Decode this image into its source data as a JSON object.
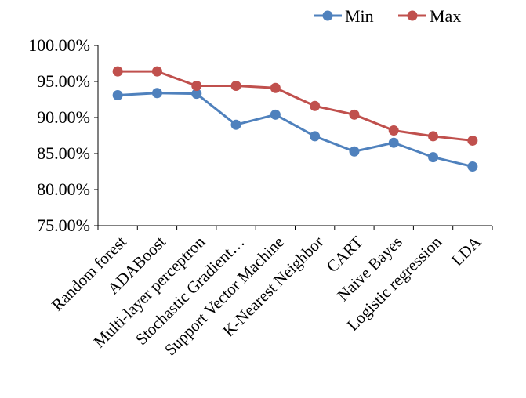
{
  "chart_data": {
    "type": "line",
    "categories": [
      "Random forest",
      "ADABoost",
      "Multi-layer perceptron",
      "Stochastic Gradient…",
      "Support Vector Machine",
      "K-Nearest Neighbor",
      "CART",
      "Naive Bayes",
      "Logistic regression",
      "LDA"
    ],
    "series": [
      {
        "name": "Min",
        "color": "#4f81bd",
        "values": [
          93.1,
          93.4,
          93.3,
          89.0,
          90.4,
          87.4,
          85.3,
          86.5,
          84.5,
          83.2
        ]
      },
      {
        "name": "Max",
        "color": "#c0504d",
        "values": [
          96.4,
          96.4,
          94.4,
          94.4,
          94.1,
          91.6,
          90.4,
          88.2,
          87.4,
          86.8
        ]
      }
    ],
    "ylim": [
      75,
      100
    ],
    "yticks": [
      "75.00%",
      "80.00%",
      "85.00%",
      "90.00%",
      "95.00%",
      "100.00%"
    ],
    "ytick_values": [
      75,
      80,
      85,
      90,
      95,
      100
    ],
    "legend_position": "top-right",
    "grid": false
  }
}
